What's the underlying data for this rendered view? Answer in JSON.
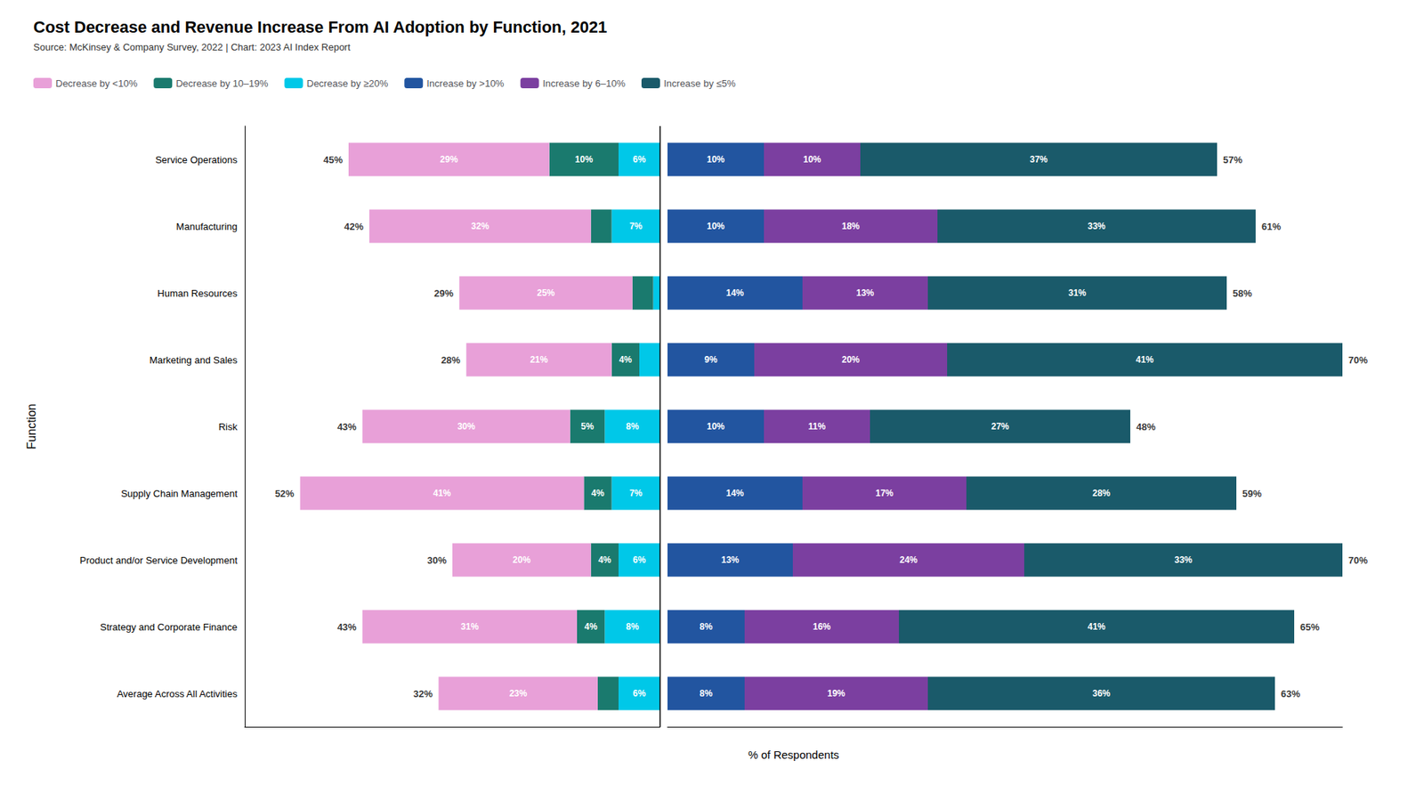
{
  "chart_data": {
    "type": "bar",
    "orientation": "horizontal",
    "stacked": true,
    "data_labels": true,
    "tick_labels": "y",
    "grid": false,
    "legend": "top left",
    "title": "Cost Decrease and Revenue Increase From AI Adoption by Function, 2021",
    "subtitle": "Source: McKinsey & Company Survey, 2022 | Chart: 2023 AI Index Report",
    "xlabel": "% of Respondents",
    "ylabel": "Function",
    "categories": [
      "Service Operations",
      "Manufacturing",
      "Human Resources",
      "Marketing and Sales",
      "Risk",
      "Supply Chain Management",
      "Product and/or Service Development",
      "Strategy and Corporate Finance",
      "Average Across All Activities"
    ],
    "series": [
      {
        "name": "Decrease by <10%",
        "color": "#e8a0d8",
        "stack": "left",
        "values": [
          29,
          32,
          25,
          21,
          30,
          41,
          20,
          31,
          23
        ],
        "value_labels": [
          "29%",
          "32%",
          "25%",
          "21%",
          "30%",
          "41%",
          "20%",
          "31%",
          "23%"
        ]
      },
      {
        "name": "Decrease by 10–19%",
        "color": "#1a7a6e",
        "stack": "left",
        "values": [
          10,
          3,
          3,
          4,
          5,
          4,
          4,
          4,
          3
        ],
        "value_labels": [
          "10%",
          null,
          null,
          "4%",
          "5%",
          "4%",
          "4%",
          "4%",
          null
        ]
      },
      {
        "name": "Decrease by ≥20%",
        "color": "#00c8e8",
        "stack": "left",
        "values": [
          6,
          7,
          1,
          3,
          8,
          7,
          6,
          8,
          6
        ],
        "value_labels": [
          "6%",
          "7%",
          null,
          null,
          "8%",
          "7%",
          "6%",
          "8%",
          "6%"
        ]
      },
      {
        "name": "Increase by >10%",
        "color": "#2255a0",
        "stack": "right",
        "values": [
          10,
          10,
          14,
          9,
          10,
          14,
          13,
          8,
          8
        ],
        "value_labels": [
          "10%",
          "10%",
          "14%",
          "9%",
          "10%",
          "14%",
          "13%",
          "8%",
          "8%"
        ]
      },
      {
        "name": "Increase by 6–10%",
        "color": "#7b3fa0",
        "stack": "right",
        "values": [
          10,
          18,
          13,
          20,
          11,
          17,
          24,
          16,
          19
        ],
        "value_labels": [
          "10%",
          "18%",
          "13%",
          "20%",
          "11%",
          "17%",
          "24%",
          "16%",
          "19%"
        ]
      },
      {
        "name": "Increase by ≤5%",
        "color": "#1a5a6a",
        "stack": "right",
        "values": [
          37,
          33,
          31,
          41,
          27,
          28,
          33,
          41,
          36
        ],
        "value_labels": [
          "37%",
          "33%",
          "31%",
          "41%",
          "27%",
          "28%",
          "33%",
          "41%",
          "36%"
        ]
      }
    ],
    "left_totals": {
      "values": [
        45,
        42,
        29,
        28,
        43,
        52,
        30,
        43,
        32
      ],
      "value_labels": [
        "45%",
        "42%",
        "29%",
        "28%",
        "43%",
        "52%",
        "30%",
        "43%",
        "32%"
      ]
    },
    "right_totals": {
      "values": [
        57,
        61,
        58,
        70,
        48,
        59,
        70,
        65,
        63
      ],
      "value_labels": [
        "57%",
        "61%",
        "58%",
        "70%",
        "48%",
        "59%",
        "70%",
        "65%",
        "63%"
      ]
    }
  }
}
